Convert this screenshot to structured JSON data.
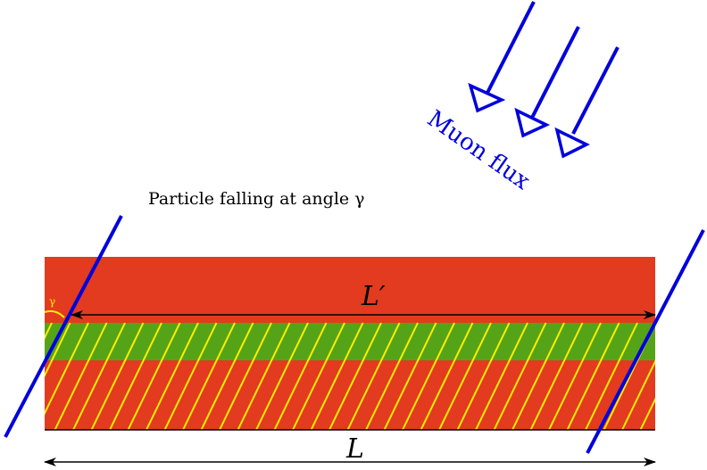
{
  "caption": "Particle falling at angle γ",
  "flux_label": "Muon flux",
  "angle_symbol": "γ",
  "length_label": "L",
  "projected_length_label": "L′",
  "colors": {
    "outer_layer": "#e23b1f",
    "middle_layer": "#55a417",
    "hatch": "#ffee00",
    "muon": "#0000dd",
    "arrow": "#000000"
  }
}
